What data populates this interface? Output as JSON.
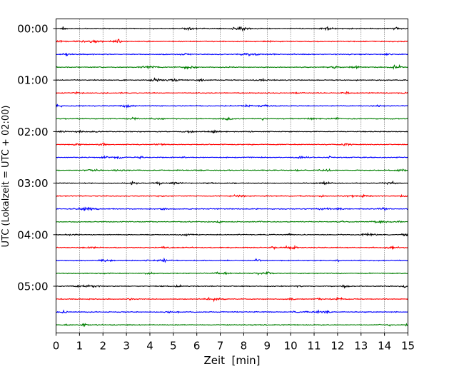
{
  "chart_data": {
    "type": "line",
    "title": "",
    "xlabel": "Zeit  [min]",
    "ylabel": "UTC (Lokalzeit = UTC + 02:00)",
    "xlim": [
      0,
      15
    ],
    "x_ticks": [
      0,
      1,
      2,
      3,
      4,
      5,
      6,
      7,
      8,
      9,
      10,
      11,
      12,
      13,
      14,
      15
    ],
    "x_tick_labels": [
      "0",
      "1",
      "2",
      "3",
      "4",
      "5",
      "6",
      "7",
      "8",
      "9",
      "10",
      "11",
      "12",
      "13",
      "14",
      "15"
    ],
    "y_tick_labels": [
      "00:00",
      "01:00",
      "02:00",
      "03:00",
      "04:00",
      "05:00"
    ],
    "y_tick_rows": [
      0,
      4,
      8,
      12,
      16,
      20
    ],
    "grid": "vertical dotted",
    "trace_count": 24,
    "trace_minutes": 15,
    "color_cycle": [
      "#000000",
      "#ff0000",
      "#0000ff",
      "#007f00"
    ],
    "traces": [
      {
        "start": "00:00",
        "color": "#000000"
      },
      {
        "start": "00:15",
        "color": "#ff0000"
      },
      {
        "start": "00:30",
        "color": "#0000ff"
      },
      {
        "start": "00:45",
        "color": "#007f00"
      },
      {
        "start": "01:00",
        "color": "#000000"
      },
      {
        "start": "01:15",
        "color": "#ff0000"
      },
      {
        "start": "01:30",
        "color": "#0000ff"
      },
      {
        "start": "01:45",
        "color": "#007f00"
      },
      {
        "start": "02:00",
        "color": "#000000"
      },
      {
        "start": "02:15",
        "color": "#ff0000"
      },
      {
        "start": "02:30",
        "color": "#0000ff"
      },
      {
        "start": "02:45",
        "color": "#007f00"
      },
      {
        "start": "03:00",
        "color": "#000000"
      },
      {
        "start": "03:15",
        "color": "#ff0000"
      },
      {
        "start": "03:30",
        "color": "#0000ff"
      },
      {
        "start": "03:45",
        "color": "#007f00"
      },
      {
        "start": "04:00",
        "color": "#000000"
      },
      {
        "start": "04:15",
        "color": "#ff0000"
      },
      {
        "start": "04:30",
        "color": "#0000ff"
      },
      {
        "start": "04:45",
        "color": "#007f00"
      },
      {
        "start": "05:00",
        "color": "#000000"
      },
      {
        "start": "05:15",
        "color": "#ff0000"
      },
      {
        "start": "05:30",
        "color": "#0000ff"
      },
      {
        "start": "05:45",
        "color": "#007f00"
      }
    ]
  }
}
